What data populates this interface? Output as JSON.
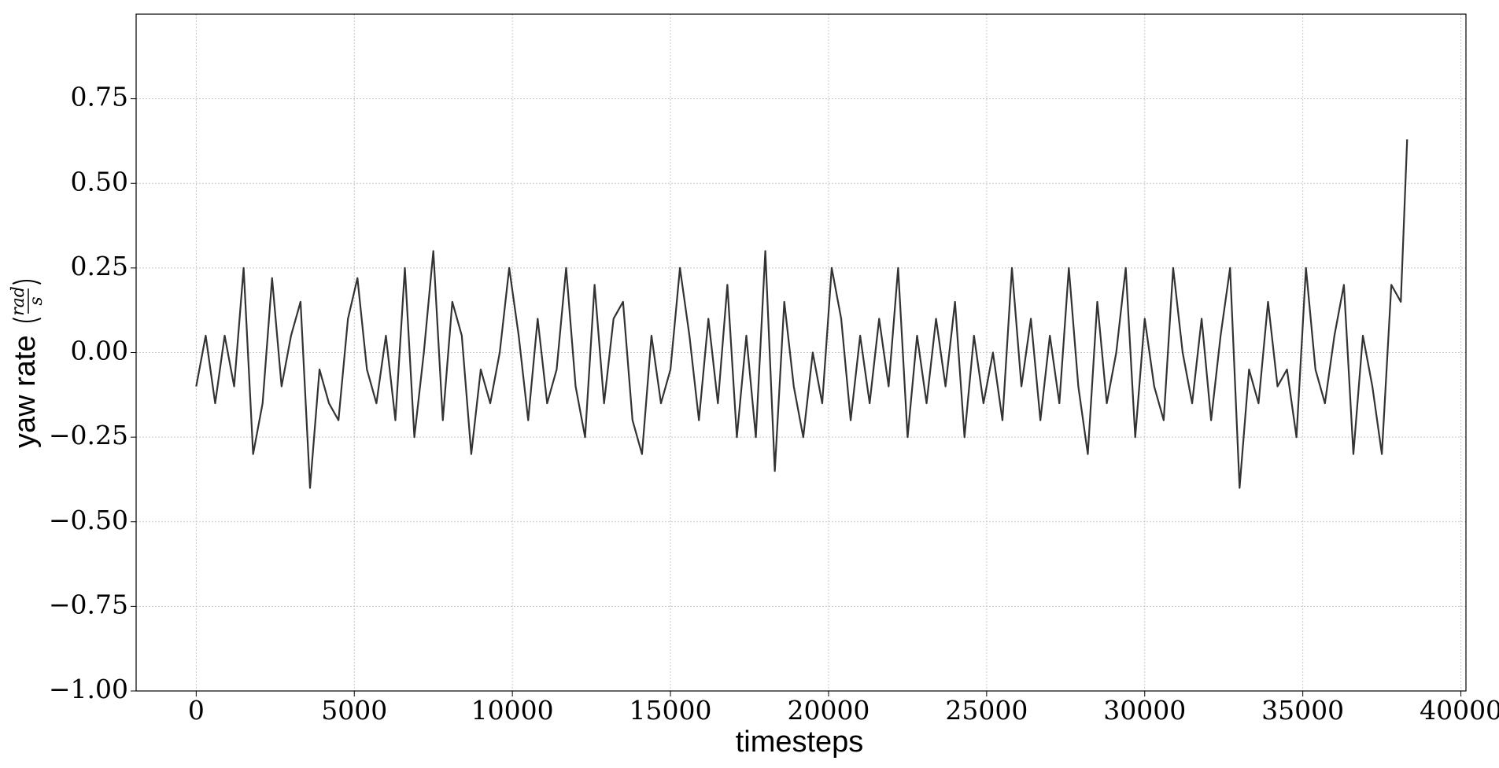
{
  "chart_data": {
    "type": "line",
    "xlabel": "timesteps",
    "ylabel": "yaw rate",
    "ylabel_units": {
      "numerator": "rad",
      "denominator": "s"
    },
    "x": [
      0,
      300,
      600,
      900,
      1200,
      1500,
      1800,
      2100,
      2400,
      2700,
      3000,
      3300,
      3600,
      3900,
      4200,
      4500,
      4800,
      5100,
      5400,
      5700,
      6000,
      6300,
      6600,
      6900,
      7200,
      7500,
      7800,
      8100,
      8400,
      8700,
      9000,
      9300,
      9600,
      9900,
      10200,
      10500,
      10800,
      11100,
      11400,
      11700,
      12000,
      12300,
      12600,
      12900,
      13200,
      13500,
      13800,
      14100,
      14400,
      14700,
      15000,
      15300,
      15600,
      15900,
      16200,
      16500,
      16800,
      17100,
      17400,
      17700,
      18000,
      18300,
      18600,
      18900,
      19200,
      19500,
      19800,
      20100,
      20400,
      20700,
      21000,
      21300,
      21600,
      21900,
      22200,
      22500,
      22800,
      23100,
      23400,
      23700,
      24000,
      24300,
      24600,
      24900,
      25200,
      25500,
      25800,
      26100,
      26400,
      26700,
      27000,
      27300,
      27600,
      27900,
      28200,
      28500,
      28800,
      29100,
      29400,
      29700,
      30000,
      30300,
      30600,
      30900,
      31200,
      31500,
      31800,
      32100,
      32400,
      32700,
      33000,
      33300,
      33600,
      33900,
      34200,
      34500,
      34800,
      35100,
      35400,
      35700,
      36000,
      36300,
      36600,
      36900,
      37200,
      37500,
      37800,
      38100,
      38300
    ],
    "series": [
      {
        "name": "yaw rate",
        "color": "#333333",
        "values": [
          -0.1,
          0.05,
          -0.15,
          0.05,
          -0.1,
          0.25,
          -0.3,
          -0.15,
          0.22,
          -0.1,
          0.05,
          0.15,
          -0.4,
          -0.05,
          -0.15,
          -0.2,
          0.1,
          0.22,
          -0.05,
          -0.15,
          0.05,
          -0.2,
          0.25,
          -0.25,
          0.0,
          0.3,
          -0.2,
          0.15,
          0.05,
          -0.3,
          -0.05,
          -0.15,
          0.0,
          0.25,
          0.05,
          -0.2,
          0.1,
          -0.15,
          -0.05,
          0.25,
          -0.1,
          -0.25,
          0.2,
          -0.15,
          0.1,
          0.15,
          -0.2,
          -0.3,
          0.05,
          -0.15,
          -0.05,
          0.25,
          0.05,
          -0.2,
          0.1,
          -0.15,
          0.2,
          -0.25,
          0.05,
          -0.25,
          0.3,
          -0.35,
          0.15,
          -0.1,
          -0.25,
          0.0,
          -0.15,
          0.25,
          0.1,
          -0.2,
          0.05,
          -0.15,
          0.1,
          -0.1,
          0.25,
          -0.25,
          0.05,
          -0.15,
          0.1,
          -0.1,
          0.15,
          -0.25,
          0.05,
          -0.15,
          0.0,
          -0.2,
          0.25,
          -0.1,
          0.1,
          -0.2,
          0.05,
          -0.15,
          0.25,
          -0.1,
          -0.3,
          0.15,
          -0.15,
          0.0,
          0.25,
          -0.25,
          0.1,
          -0.1,
          -0.2,
          0.25,
          0.0,
          -0.15,
          0.1,
          -0.2,
          0.05,
          0.25,
          -0.4,
          -0.05,
          -0.15,
          0.15,
          -0.1,
          -0.05,
          -0.25,
          0.25,
          -0.05,
          -0.15,
          0.05,
          0.2,
          -0.3,
          0.05,
          -0.1,
          -0.3,
          0.2,
          0.15,
          0.63
        ]
      }
    ],
    "xlim": [
      -1900,
      40160
    ],
    "ylim": [
      -1.0,
      1.0
    ],
    "xticks": [
      0,
      5000,
      10000,
      15000,
      20000,
      25000,
      30000,
      35000,
      40000
    ],
    "yticks": [
      {
        "value": -1.0,
        "label": "−1.00"
      },
      {
        "value": -0.75,
        "label": "−0.75"
      },
      {
        "value": -0.5,
        "label": "−0.50"
      },
      {
        "value": -0.25,
        "label": "−0.25"
      },
      {
        "value": 0.0,
        "label": "0.00"
      },
      {
        "value": 0.25,
        "label": "0.25"
      },
      {
        "value": 0.5,
        "label": "0.50"
      },
      {
        "value": 0.75,
        "label": "0.75"
      }
    ],
    "grid": true
  }
}
